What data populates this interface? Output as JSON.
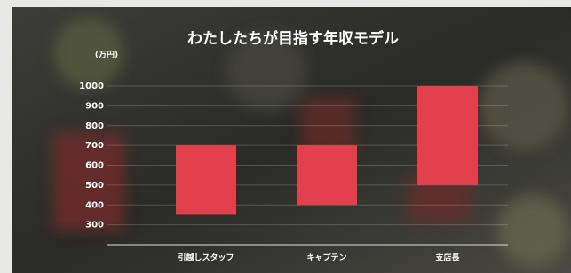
{
  "chart_data": {
    "type": "floating-bar",
    "title": "わたしたちが目指す年収モデル",
    "y_label": "(万円)",
    "categories": [
      "引越しスタッフ",
      "キャプテン",
      "支店長"
    ],
    "low": [
      350,
      400,
      500
    ],
    "high": [
      700,
      700,
      1000
    ],
    "color": "#e1404c",
    "ylim": [
      200,
      1000
    ],
    "yticks": [
      300,
      400,
      500,
      600,
      700,
      800,
      900,
      1000
    ],
    "grid": true
  }
}
